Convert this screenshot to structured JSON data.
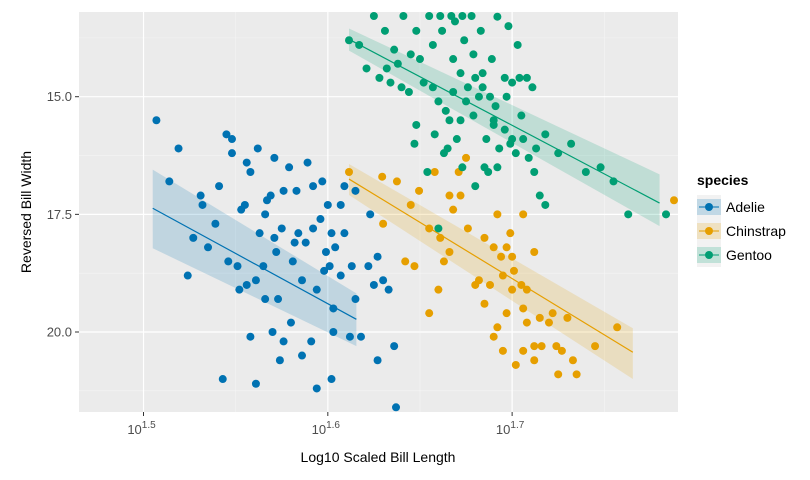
{
  "chart_data": {
    "type": "scatter",
    "title": "",
    "xlabel": "Log10 Scaled Bill Length",
    "ylabel": "Reversed Bill Width",
    "x_scale": "log10",
    "y_reversed": true,
    "xlim": [
      1.465,
      1.79
    ],
    "ylim": [
      13.2,
      21.7
    ],
    "x_ticks": [
      {
        "value": 1.5,
        "base": "10",
        "exp": "1.5"
      },
      {
        "value": 1.6,
        "base": "10",
        "exp": "1.6"
      },
      {
        "value": 1.7,
        "base": "10",
        "exp": "1.7"
      }
    ],
    "y_ticks": [
      {
        "value": 15.0,
        "label": "15.0"
      },
      {
        "value": 17.5,
        "label": "17.5"
      },
      {
        "value": 20.0,
        "label": "20.0"
      }
    ],
    "grid": true,
    "smoothing": "linear regression with confidence band",
    "legend": {
      "title": "species",
      "position": "right"
    },
    "series": [
      {
        "name": "Adelie",
        "color": "#0072B2",
        "fit": {
          "x": [
            1.505,
            1.6155
          ],
          "y": [
            17.37,
            19.73
          ],
          "band_lo": [
            16.55,
            19.18
          ],
          "band_hi": [
            18.22,
            20.3
          ]
        },
        "points": [
          [
            1.507,
            15.5
          ],
          [
            1.519,
            16.1
          ],
          [
            1.531,
            17.1
          ],
          [
            1.524,
            18.8
          ],
          [
            1.541,
            16.9
          ],
          [
            1.545,
            15.8
          ],
          [
            1.548,
            15.9
          ],
          [
            1.535,
            18.2
          ],
          [
            1.553,
            17.4
          ],
          [
            1.558,
            16.6
          ],
          [
            1.562,
            16.1
          ],
          [
            1.567,
            17.2
          ],
          [
            1.571,
            16.3
          ],
          [
            1.575,
            17.8
          ],
          [
            1.579,
            16.5
          ],
          [
            1.583,
            17.0
          ],
          [
            1.588,
            18.1
          ],
          [
            1.592,
            16.9
          ],
          [
            1.596,
            17.6
          ],
          [
            1.6,
            17.3
          ],
          [
            1.604,
            18.2
          ],
          [
            1.609,
            17.9
          ],
          [
            1.613,
            18.6
          ],
          [
            1.571,
            18.0
          ],
          [
            1.573,
            19.3
          ],
          [
            1.581,
            18.5
          ],
          [
            1.586,
            18.9
          ],
          [
            1.594,
            19.1
          ],
          [
            1.599,
            18.3
          ],
          [
            1.603,
            19.5
          ],
          [
            1.607,
            18.8
          ],
          [
            1.561,
            18.9
          ],
          [
            1.566,
            19.3
          ],
          [
            1.555,
            17.3
          ],
          [
            1.551,
            18.6
          ],
          [
            1.589,
            16.4
          ],
          [
            1.597,
            16.8
          ],
          [
            1.602,
            17.9
          ],
          [
            1.566,
            17.5
          ],
          [
            1.576,
            17.0
          ],
          [
            1.584,
            17.9
          ],
          [
            1.572,
            18.3
          ],
          [
            1.598,
            18.7
          ],
          [
            1.563,
            17.9
          ],
          [
            1.556,
            19.0
          ],
          [
            1.546,
            18.5
          ],
          [
            1.539,
            17.7
          ],
          [
            1.532,
            17.3
          ],
          [
            1.527,
            18.0
          ],
          [
            1.514,
            16.8
          ],
          [
            1.576,
            20.2
          ],
          [
            1.586,
            20.5
          ],
          [
            1.591,
            20.2
          ],
          [
            1.594,
            21.2
          ],
          [
            1.603,
            20.0
          ],
          [
            1.612,
            20.1
          ],
          [
            1.602,
            21.0
          ],
          [
            1.561,
            21.1
          ],
          [
            1.543,
            21.0
          ],
          [
            1.58,
            19.8
          ],
          [
            1.574,
            20.6
          ],
          [
            1.57,
            20.0
          ],
          [
            1.558,
            20.1
          ],
          [
            1.552,
            19.1
          ],
          [
            1.565,
            18.6
          ],
          [
            1.569,
            17.1
          ],
          [
            1.556,
            16.4
          ],
          [
            1.548,
            16.2
          ],
          [
            1.582,
            18.1
          ],
          [
            1.601,
            18.6
          ],
          [
            1.592,
            17.8
          ],
          [
            1.607,
            17.3
          ],
          [
            1.615,
            17.0
          ],
          [
            1.622,
            18.6
          ],
          [
            1.618,
            20.1
          ],
          [
            1.623,
            17.5
          ],
          [
            1.609,
            16.9
          ],
          [
            1.615,
            19.3
          ],
          [
            1.625,
            19.0
          ],
          [
            1.627,
            20.6
          ],
          [
            1.636,
            20.3
          ],
          [
            1.637,
            21.6
          ],
          [
            1.633,
            19.1
          ],
          [
            1.63,
            18.9
          ],
          [
            1.627,
            18.4
          ]
        ]
      },
      {
        "name": "Chinstrap",
        "color": "#E69F00",
        "fit": {
          "x": [
            1.6115,
            1.7655
          ],
          "y": [
            16.75,
            20.43
          ],
          "band_lo": [
            16.43,
            19.92
          ],
          "band_hi": [
            17.09,
            21.0
          ]
        },
        "points": [
          [
            1.6115,
            16.6
          ],
          [
            1.6295,
            16.7
          ],
          [
            1.6375,
            16.8
          ],
          [
            1.6495,
            17.0
          ],
          [
            1.658,
            16.6
          ],
          [
            1.655,
            17.8
          ],
          [
            1.661,
            18.0
          ],
          [
            1.663,
            18.5
          ],
          [
            1.66,
            19.1
          ],
          [
            1.655,
            19.6
          ],
          [
            1.671,
            16.6
          ],
          [
            1.666,
            17.1
          ],
          [
            1.668,
            17.4
          ],
          [
            1.675,
            16.3
          ],
          [
            1.645,
            17.3
          ],
          [
            1.642,
            18.5
          ],
          [
            1.63,
            17.7
          ],
          [
            1.647,
            18.6
          ],
          [
            1.666,
            18.3
          ],
          [
            1.672,
            17.1
          ],
          [
            1.676,
            17.8
          ],
          [
            1.685,
            18.0
          ],
          [
            1.69,
            18.2
          ],
          [
            1.694,
            18.4
          ],
          [
            1.697,
            18.2
          ],
          [
            1.682,
            18.9
          ],
          [
            1.688,
            19.0
          ],
          [
            1.695,
            18.8
          ],
          [
            1.7,
            19.1
          ],
          [
            1.705,
            19.0
          ],
          [
            1.706,
            19.5
          ],
          [
            1.708,
            19.8
          ],
          [
            1.712,
            20.3
          ],
          [
            1.715,
            19.7
          ],
          [
            1.72,
            19.8
          ],
          [
            1.724,
            20.3
          ],
          [
            1.73,
            19.7
          ],
          [
            1.745,
            20.3
          ],
          [
            1.757,
            19.9
          ],
          [
            1.725,
            20.9
          ],
          [
            1.712,
            20.6
          ],
          [
            1.702,
            20.7
          ],
          [
            1.692,
            19.9
          ],
          [
            1.69,
            20.1
          ],
          [
            1.685,
            19.4
          ],
          [
            1.68,
            19.0
          ],
          [
            1.695,
            20.4
          ],
          [
            1.706,
            20.4
          ],
          [
            1.708,
            19.1
          ],
          [
            1.7,
            18.4
          ],
          [
            1.716,
            20.3
          ],
          [
            1.697,
            19.6
          ],
          [
            1.701,
            18.7
          ],
          [
            1.706,
            17.5
          ],
          [
            1.712,
            18.3
          ],
          [
            1.699,
            17.9
          ],
          [
            1.692,
            17.5
          ],
          [
            1.735,
            20.9
          ],
          [
            1.79,
            17.2
          ],
          [
            1.722,
            19.6
          ],
          [
            1.727,
            20.4
          ],
          [
            1.733,
            20.6
          ]
        ]
      },
      {
        "name": "Gentoo",
        "color": "#009E73",
        "fit": {
          "x": [
            1.6115,
            1.78
          ],
          "y": [
            13.78,
            17.26
          ],
          "band_lo": [
            13.55,
            16.65
          ],
          "band_hi": [
            14.02,
            17.75
          ]
        },
        "points": [
          [
            1.6115,
            13.8
          ],
          [
            1.617,
            13.9
          ],
          [
            1.621,
            14.4
          ],
          [
            1.628,
            14.6
          ],
          [
            1.632,
            14.4
          ],
          [
            1.636,
            14.0
          ],
          [
            1.64,
            14.8
          ],
          [
            1.644,
            14.9
          ],
          [
            1.648,
            13.6
          ],
          [
            1.652,
            14.7
          ],
          [
            1.657,
            14.8
          ],
          [
            1.66,
            15.1
          ],
          [
            1.664,
            15.3
          ],
          [
            1.668,
            14.9
          ],
          [
            1.672,
            15.5
          ],
          [
            1.675,
            15.1
          ],
          [
            1.679,
            15.4
          ],
          [
            1.682,
            15.0
          ],
          [
            1.686,
            15.9
          ],
          [
            1.69,
            15.5
          ],
          [
            1.693,
            16.1
          ],
          [
            1.696,
            15.7
          ],
          [
            1.699,
            16.0
          ],
          [
            1.702,
            16.2
          ],
          [
            1.705,
            15.4
          ],
          [
            1.709,
            16.3
          ],
          [
            1.713,
            16.1
          ],
          [
            1.718,
            15.8
          ],
          [
            1.725,
            16.2
          ],
          [
            1.732,
            16.0
          ],
          [
            1.74,
            16.6
          ],
          [
            1.748,
            16.5
          ],
          [
            1.755,
            16.8
          ],
          [
            1.763,
            17.5
          ],
          [
            1.7835,
            17.5
          ],
          [
            1.641,
            13.1
          ],
          [
            1.655,
            12.8
          ],
          [
            1.661,
            12.9
          ],
          [
            1.667,
            12.9
          ],
          [
            1.673,
            12.9
          ],
          [
            1.678,
            13.1
          ],
          [
            1.683,
            13.6
          ],
          [
            1.692,
            13.3
          ],
          [
            1.698,
            13.5
          ],
          [
            1.703,
            13.9
          ],
          [
            1.696,
            14.6
          ],
          [
            1.689,
            14.2
          ],
          [
            1.684,
            14.5
          ],
          [
            1.679,
            14.1
          ],
          [
            1.674,
            13.8
          ],
          [
            1.669,
            13.4
          ],
          [
            1.662,
            13.6
          ],
          [
            1.657,
            13.9
          ],
          [
            1.65,
            14.2
          ],
          [
            1.645,
            14.1
          ],
          [
            1.638,
            14.3
          ],
          [
            1.631,
            13.6
          ],
          [
            1.625,
            13.1
          ],
          [
            1.634,
            14.7
          ],
          [
            1.648,
            15.6
          ],
          [
            1.658,
            15.8
          ],
          [
            1.665,
            16.1
          ],
          [
            1.673,
            16.5
          ],
          [
            1.68,
            16.9
          ],
          [
            1.687,
            16.6
          ],
          [
            1.691,
            15.2
          ],
          [
            1.688,
            15.0
          ],
          [
            1.7,
            14.7
          ],
          [
            1.704,
            14.6
          ],
          [
            1.708,
            14.6
          ],
          [
            1.711,
            14.8
          ],
          [
            1.706,
            15.9
          ],
          [
            1.712,
            16.6
          ],
          [
            1.715,
            17.1
          ],
          [
            1.718,
            17.3
          ],
          [
            1.69,
            15.6
          ],
          [
            1.663,
            16.2
          ],
          [
            1.685,
            16.5
          ],
          [
            1.67,
            15.9
          ],
          [
            1.666,
            15.5
          ],
          [
            1.697,
            15.0
          ],
          [
            1.7,
            15.9
          ],
          [
            1.692,
            16.5
          ],
          [
            1.66,
            17.8
          ],
          [
            1.647,
            16.0
          ],
          [
            1.654,
            16.6
          ],
          [
            1.668,
            14.2
          ],
          [
            1.672,
            14.5
          ],
          [
            1.676,
            14.8
          ],
          [
            1.68,
            14.6
          ],
          [
            1.684,
            14.8
          ]
        ]
      }
    ]
  }
}
